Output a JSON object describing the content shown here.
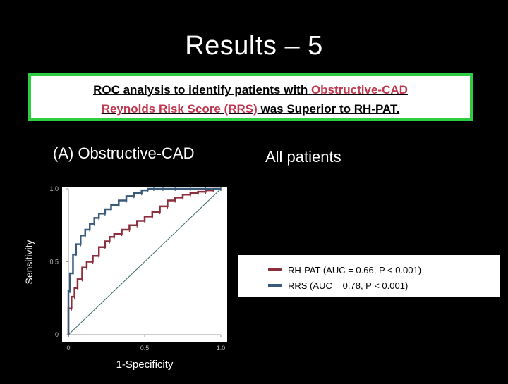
{
  "slide": {
    "title": "Results – 5",
    "box_line1_prefix": "ROC analysis to identify patients with ",
    "box_line1_highlight": "Obstructive-CAD",
    "box_line2_highlight": "Reynolds Risk Score (RRS)",
    "box_line2_suffix": " was Superior to RH-PAT.",
    "panel_title": "(A) Obstructive-CAD",
    "panel_subtitle": "All patients"
  },
  "colors": {
    "box_border": "#2ecc40",
    "highlight_text": "#c0384f",
    "rh_pat": "#8b2f3c",
    "rrs": "#3a5a7a",
    "diagonal": "#3a6a6a"
  },
  "chart_data": {
    "type": "line",
    "xlabel": "1-Specificity",
    "ylabel": "Sensitivity",
    "xlim": [
      0,
      1
    ],
    "ylim": [
      0,
      1
    ],
    "x_ticks": [
      "0",
      "0.5",
      "1.0"
    ],
    "y_ticks": [
      "0",
      "0.5",
      "1.0"
    ],
    "grid": false,
    "legend_position": "right",
    "series": [
      {
        "name": "RH-PAT (AUC = 0.66, P < 0.001)",
        "x": [
          0,
          0,
          0.02,
          0.04,
          0.06,
          0.09,
          0.12,
          0.16,
          0.2,
          0.24,
          0.27,
          0.3,
          0.35,
          0.4,
          0.45,
          0.5,
          0.55,
          0.6,
          0.65,
          0.7,
          0.75,
          0.8,
          0.85,
          0.9,
          0.95,
          1.0
        ],
        "y": [
          0,
          0.12,
          0.18,
          0.26,
          0.32,
          0.38,
          0.46,
          0.5,
          0.54,
          0.6,
          0.64,
          0.67,
          0.69,
          0.72,
          0.75,
          0.78,
          0.81,
          0.84,
          0.88,
          0.92,
          0.94,
          0.96,
          0.97,
          0.98,
          0.99,
          1.0
        ]
      },
      {
        "name": "RRS (AUC = 0.78, P < 0.001)",
        "x": [
          0,
          0,
          0.01,
          0.03,
          0.05,
          0.08,
          0.11,
          0.14,
          0.17,
          0.2,
          0.24,
          0.28,
          0.33,
          0.38,
          0.43,
          0.48,
          0.52,
          0.56,
          0.62,
          0.7,
          0.8,
          0.9,
          1.0
        ],
        "y": [
          0,
          0.2,
          0.3,
          0.42,
          0.55,
          0.62,
          0.68,
          0.72,
          0.76,
          0.8,
          0.83,
          0.86,
          0.89,
          0.92,
          0.95,
          0.97,
          0.99,
          1.0,
          1.0,
          1.0,
          1.0,
          1.0,
          1.0
        ]
      }
    ]
  }
}
